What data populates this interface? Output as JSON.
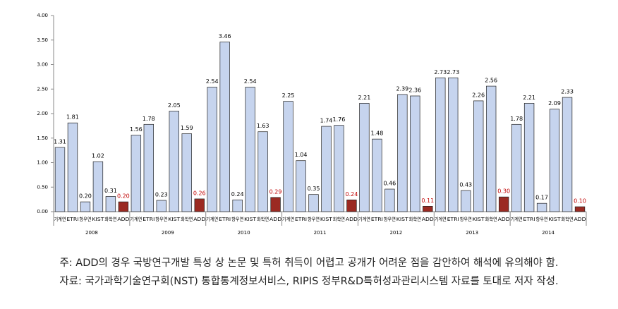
{
  "chart_data": {
    "type": "bar",
    "categories": [
      "2008",
      "2009",
      "2010",
      "2011",
      "2012",
      "2013",
      "2014"
    ],
    "series": [
      {
        "name": "기계연",
        "color": "#c6d4ee",
        "label_color": "#000000",
        "values": [
          1.31,
          1.56,
          2.54,
          2.25,
          2.21,
          2.73,
          1.78
        ],
        "value_labels": [
          "1.31",
          "1.56",
          "2.54",
          "2.25",
          "2.21",
          "2.73",
          "1.78"
        ]
      },
      {
        "name": "ETRI",
        "color": "#c6d4ee",
        "label_color": "#000000",
        "values": [
          1.81,
          1.78,
          3.46,
          1.04,
          1.48,
          2.73,
          2.21
        ],
        "value_labels": [
          "1.81",
          "1.78",
          "3.46",
          "1.04",
          "1.48",
          "2.73",
          "2.21"
        ]
      },
      {
        "name": "항우연",
        "color": "#c6d4ee",
        "label_color": "#000000",
        "values": [
          0.2,
          0.23,
          0.24,
          0.35,
          0.46,
          0.43,
          0.17
        ],
        "value_labels": [
          "0.20",
          "0.23",
          "0.24",
          "0.35",
          "0.46",
          "0.43",
          "0.17"
        ]
      },
      {
        "name": "KIST",
        "color": "#c6d4ee",
        "label_color": "#000000",
        "values": [
          1.02,
          2.05,
          2.54,
          1.74,
          2.39,
          2.26,
          2.09
        ],
        "value_labels": [
          "1.02",
          "2.05",
          "2.54",
          "1.74",
          "2.39",
          "2.26",
          "2.09"
        ]
      },
      {
        "name": "화학연",
        "color": "#c6d4ee",
        "label_color": "#000000",
        "values": [
          0.31,
          1.59,
          1.63,
          1.76,
          2.36,
          2.56,
          2.33
        ],
        "value_labels": [
          "0.31",
          "1.59",
          "1.63",
          "1.76",
          "2.36",
          "2.56",
          "2.33"
        ]
      },
      {
        "name": "ADD",
        "color": "#9b2a22",
        "label_color": "#c00000",
        "values": [
          0.2,
          0.26,
          0.29,
          0.24,
          0.11,
          0.3,
          0.1
        ],
        "value_labels": [
          "0.20",
          "0.26",
          "0.29",
          "0.24",
          "0.11",
          "0.30",
          "0.10"
        ]
      }
    ],
    "ylim": [
      0,
      4
    ],
    "yticks": [
      {
        "value": 0,
        "label": "0.00"
      },
      {
        "value": 0.5,
        "label": "0.50"
      },
      {
        "value": 1,
        "label": "1.00"
      },
      {
        "value": 1.5,
        "label": "1.50"
      },
      {
        "value": 2,
        "label": "2.00"
      },
      {
        "value": 2.5,
        "label": "2.50"
      },
      {
        "value": 3,
        "label": "3.00"
      },
      {
        "value": 3.5,
        "label": "3.50"
      },
      {
        "value": 4,
        "label": "4.00"
      }
    ],
    "notes": [
      "주: ADD의 경우 국방연구개발 특성 상 논문 및 특허 취득이 어렵고 공개가 어려운 점을 감안하여 해석에 유의해야 함.",
      "자료: 국가과학기술연구회(NST) 통합통계정보서비스, RIPIS 정부R&D특허성과관리시스템 자료를 토대로 저자 작성."
    ]
  }
}
